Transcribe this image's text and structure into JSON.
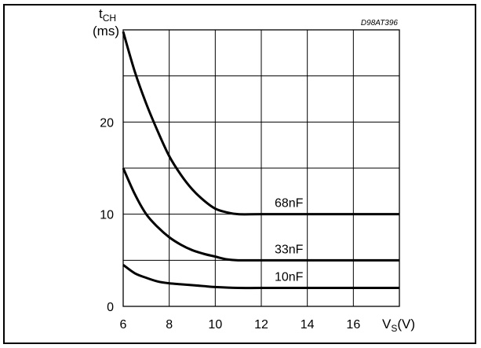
{
  "chart_data": {
    "type": "line",
    "title": "",
    "figure_code": "D98AT396",
    "ylabel": {
      "main": "t",
      "sub": "CH",
      "unit": "(ms)"
    },
    "xlabel": {
      "main": "V",
      "sub": "S",
      "unit": "(V)"
    },
    "xlim": [
      6,
      18
    ],
    "ylim": [
      0,
      30
    ],
    "x_ticks": [
      6,
      8,
      10,
      12,
      14,
      16
    ],
    "y_ticks": [
      0,
      10,
      20
    ],
    "grid": true,
    "series": [
      {
        "name": "68nF",
        "points": [
          [
            6,
            29.8
          ],
          [
            6.5,
            25.5
          ],
          [
            7,
            22.0
          ],
          [
            7.5,
            19.0
          ],
          [
            8,
            16.3
          ],
          [
            8.5,
            14.3
          ],
          [
            9,
            12.7
          ],
          [
            9.5,
            11.5
          ],
          [
            10,
            10.6
          ],
          [
            10.5,
            10.2
          ],
          [
            11,
            10.0
          ],
          [
            12,
            10.0
          ],
          [
            14,
            10.0
          ],
          [
            16,
            10.0
          ],
          [
            18,
            10.0
          ]
        ]
      },
      {
        "name": "33nF",
        "points": [
          [
            6,
            15.0
          ],
          [
            6.5,
            12.2
          ],
          [
            7,
            10.0
          ],
          [
            7.5,
            8.6
          ],
          [
            8,
            7.5
          ],
          [
            8.5,
            6.7
          ],
          [
            9,
            6.1
          ],
          [
            9.5,
            5.7
          ],
          [
            10,
            5.4
          ],
          [
            10.5,
            5.1
          ],
          [
            11,
            5.0
          ],
          [
            12,
            5.0
          ],
          [
            14,
            5.0
          ],
          [
            16,
            5.0
          ],
          [
            18,
            5.0
          ]
        ]
      },
      {
        "name": "10nF",
        "points": [
          [
            6,
            4.5
          ],
          [
            6.5,
            3.6
          ],
          [
            7,
            3.1
          ],
          [
            7.5,
            2.7
          ],
          [
            8,
            2.5
          ],
          [
            8.5,
            2.4
          ],
          [
            9,
            2.3
          ],
          [
            9.5,
            2.2
          ],
          [
            10,
            2.1
          ],
          [
            11,
            2.0
          ],
          [
            12,
            2.0
          ],
          [
            14,
            2.0
          ],
          [
            16,
            2.0
          ],
          [
            18,
            2.0
          ]
        ]
      }
    ]
  }
}
